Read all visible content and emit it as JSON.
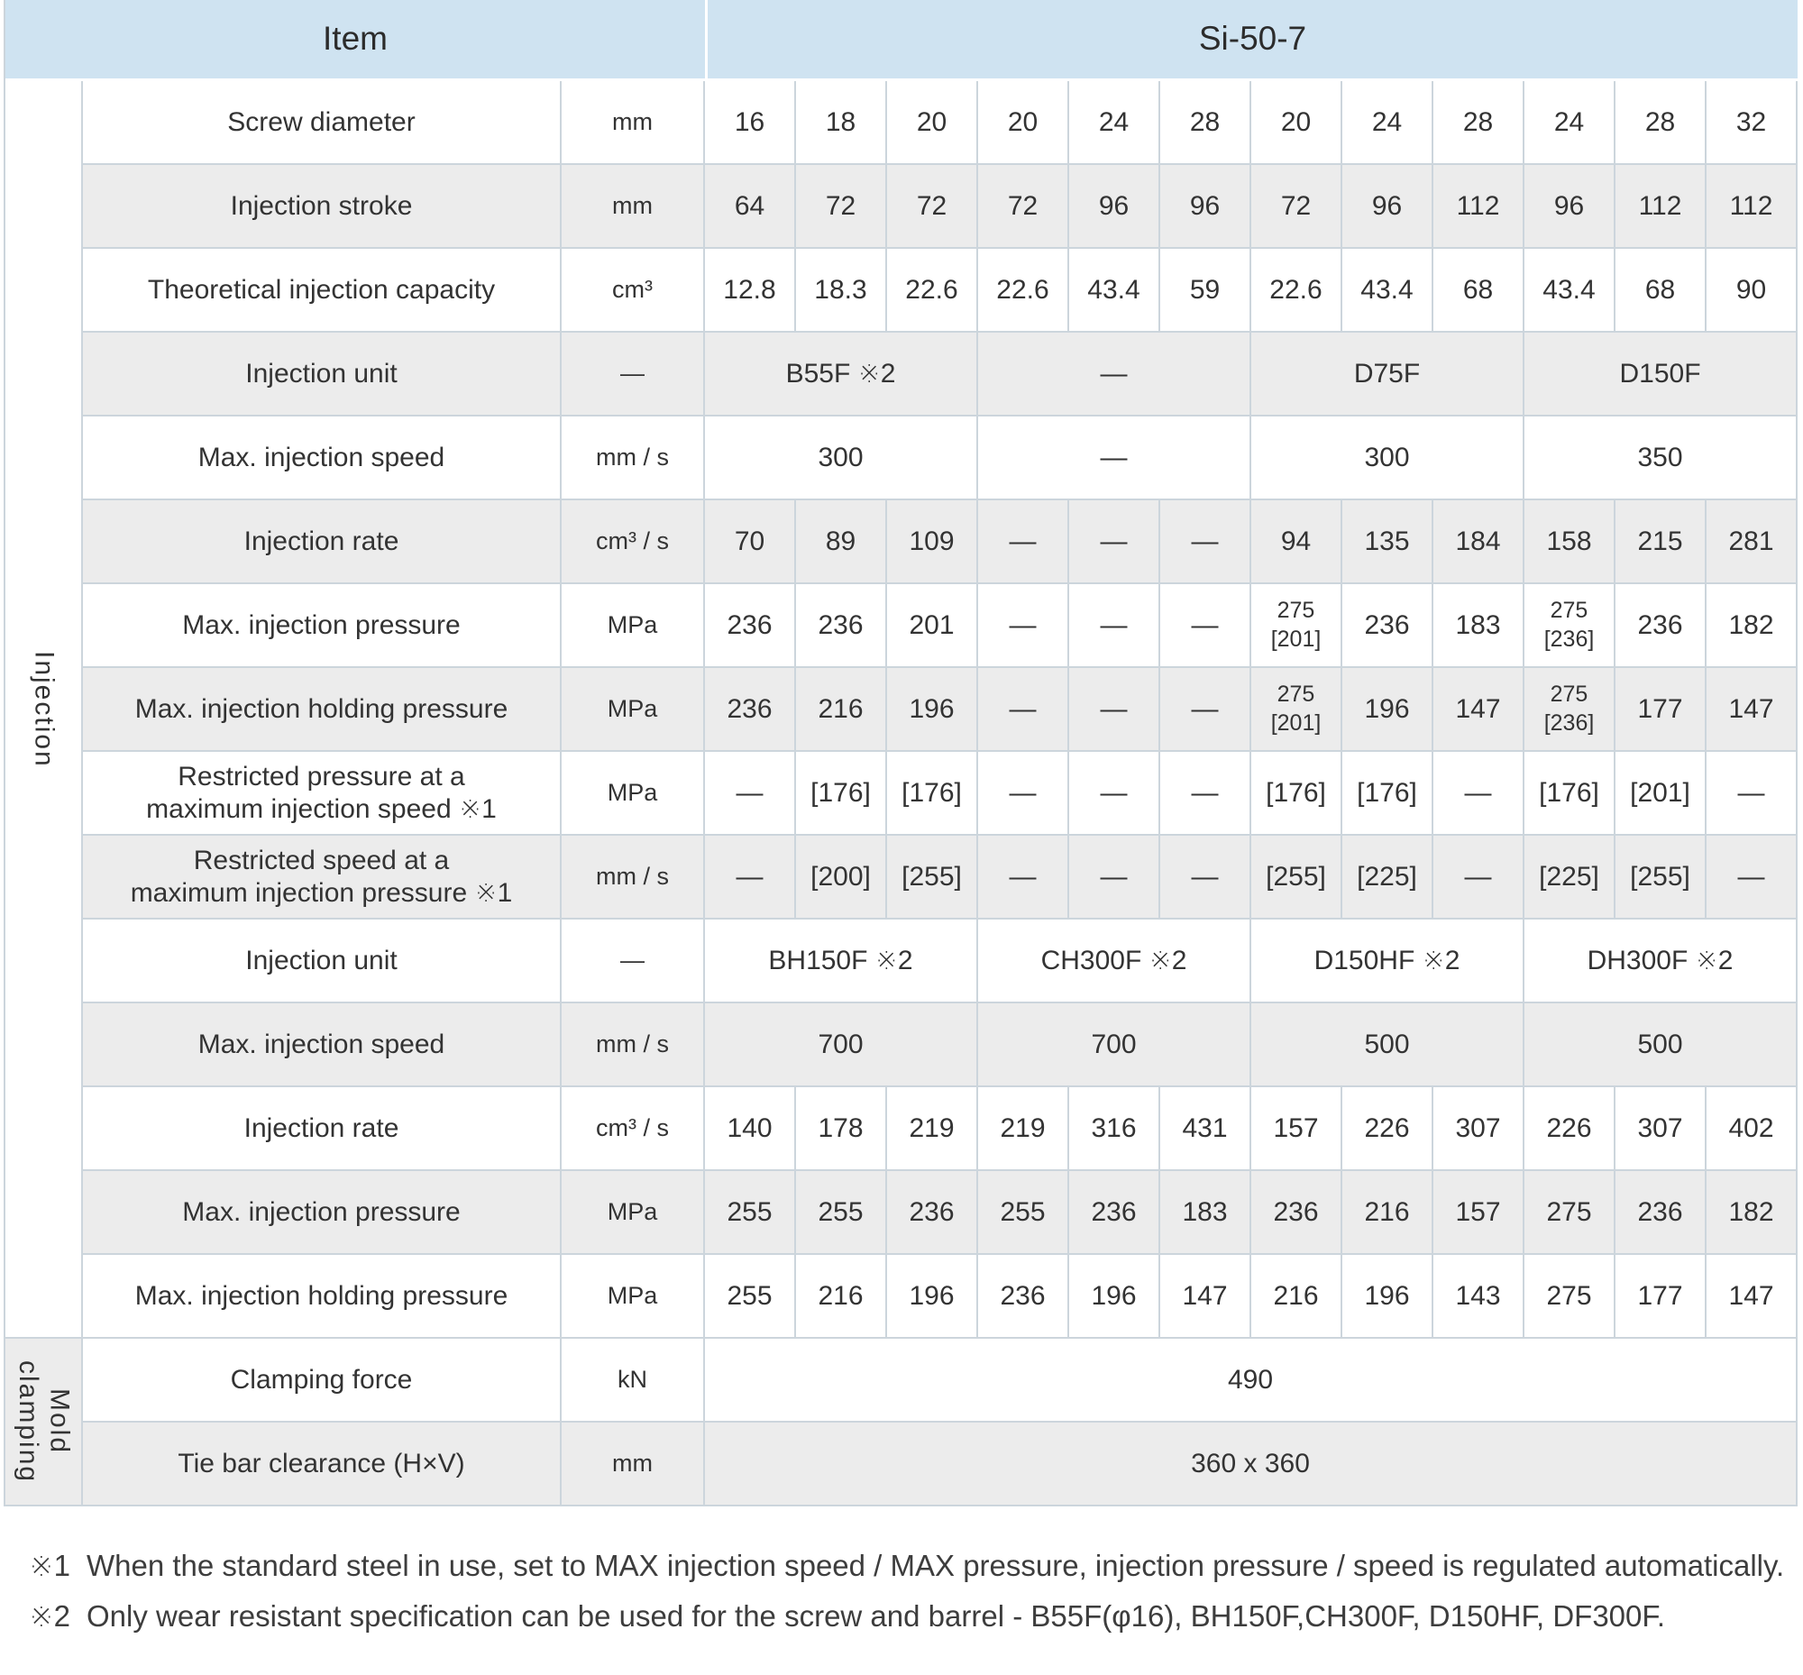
{
  "table": {
    "header": {
      "item": "Item",
      "model": "Si-50-7"
    },
    "row_groups": [
      {
        "label": "Injection",
        "rows": [
          {
            "label": "Screw diameter",
            "unit": "mm",
            "cells": [
              {
                "text": "16",
                "span": 1
              },
              {
                "text": "18",
                "span": 1
              },
              {
                "text": "20",
                "span": 1
              },
              {
                "text": "20",
                "span": 1
              },
              {
                "text": "24",
                "span": 1
              },
              {
                "text": "28",
                "span": 1
              },
              {
                "text": "20",
                "span": 1
              },
              {
                "text": "24",
                "span": 1
              },
              {
                "text": "28",
                "span": 1
              },
              {
                "text": "24",
                "span": 1
              },
              {
                "text": "28",
                "span": 1
              },
              {
                "text": "32",
                "span": 1
              }
            ]
          },
          {
            "label": "Injection stroke",
            "unit": "mm",
            "cells": [
              {
                "text": "64",
                "span": 1
              },
              {
                "text": "72",
                "span": 1
              },
              {
                "text": "72",
                "span": 1
              },
              {
                "text": "72",
                "span": 1
              },
              {
                "text": "96",
                "span": 1
              },
              {
                "text": "96",
                "span": 1
              },
              {
                "text": "72",
                "span": 1
              },
              {
                "text": "96",
                "span": 1
              },
              {
                "text": "112",
                "span": 1
              },
              {
                "text": "96",
                "span": 1
              },
              {
                "text": "112",
                "span": 1
              },
              {
                "text": "112",
                "span": 1
              }
            ]
          },
          {
            "label": "Theoretical injection capacity",
            "unit": "cm³",
            "cells": [
              {
                "text": "12.8",
                "span": 1
              },
              {
                "text": "18.3",
                "span": 1
              },
              {
                "text": "22.6",
                "span": 1
              },
              {
                "text": "22.6",
                "span": 1
              },
              {
                "text": "43.4",
                "span": 1
              },
              {
                "text": "59",
                "span": 1
              },
              {
                "text": "22.6",
                "span": 1
              },
              {
                "text": "43.4",
                "span": 1
              },
              {
                "text": "68",
                "span": 1
              },
              {
                "text": "43.4",
                "span": 1
              },
              {
                "text": "68",
                "span": 1
              },
              {
                "text": "90",
                "span": 1
              }
            ]
          },
          {
            "label": "Injection unit",
            "unit": "—",
            "cells": [
              {
                "text": "B55F ※2",
                "span": 3
              },
              {
                "text": "—",
                "span": 3
              },
              {
                "text": "D75F",
                "span": 3
              },
              {
                "text": "D150F",
                "span": 3
              }
            ]
          },
          {
            "label": "Max. injection speed",
            "unit": "mm / s",
            "cells": [
              {
                "text": "300",
                "span": 3
              },
              {
                "text": "—",
                "span": 3
              },
              {
                "text": "300",
                "span": 3
              },
              {
                "text": "350",
                "span": 3
              }
            ]
          },
          {
            "label": "Injection rate",
            "unit": "cm³ / s",
            "cells": [
              {
                "text": "70",
                "span": 1
              },
              {
                "text": "89",
                "span": 1
              },
              {
                "text": "109",
                "span": 1
              },
              {
                "text": "—",
                "span": 1
              },
              {
                "text": "—",
                "span": 1
              },
              {
                "text": "—",
                "span": 1
              },
              {
                "text": "94",
                "span": 1
              },
              {
                "text": "135",
                "span": 1
              },
              {
                "text": "184",
                "span": 1
              },
              {
                "text": "158",
                "span": 1
              },
              {
                "text": "215",
                "span": 1
              },
              {
                "text": "281",
                "span": 1
              }
            ]
          },
          {
            "label": "Max. injection pressure",
            "unit": "MPa",
            "cells": [
              {
                "text": "236",
                "span": 1
              },
              {
                "text": "236",
                "span": 1
              },
              {
                "text": "201",
                "span": 1
              },
              {
                "text": "—",
                "span": 1
              },
              {
                "text": "—",
                "span": 1
              },
              {
                "text": "—",
                "span": 1
              },
              {
                "text": "275\n[201]",
                "span": 1
              },
              {
                "text": "236",
                "span": 1
              },
              {
                "text": "183",
                "span": 1
              },
              {
                "text": "275\n[236]",
                "span": 1
              },
              {
                "text": "236",
                "span": 1
              },
              {
                "text": "182",
                "span": 1
              }
            ]
          },
          {
            "label": "Max. injection holding pressure",
            "unit": "MPa",
            "cells": [
              {
                "text": "236",
                "span": 1
              },
              {
                "text": "216",
                "span": 1
              },
              {
                "text": "196",
                "span": 1
              },
              {
                "text": "—",
                "span": 1
              },
              {
                "text": "—",
                "span": 1
              },
              {
                "text": "—",
                "span": 1
              },
              {
                "text": "275\n[201]",
                "span": 1
              },
              {
                "text": "196",
                "span": 1
              },
              {
                "text": "147",
                "span": 1
              },
              {
                "text": "275\n[236]",
                "span": 1
              },
              {
                "text": "177",
                "span": 1
              },
              {
                "text": "147",
                "span": 1
              }
            ]
          },
          {
            "label": "Restricted pressure at a\nmaximum injection speed ※1",
            "unit": "MPa",
            "cells": [
              {
                "text": "—",
                "span": 1
              },
              {
                "text": "[176]",
                "span": 1
              },
              {
                "text": "[176]",
                "span": 1
              },
              {
                "text": "—",
                "span": 1
              },
              {
                "text": "—",
                "span": 1
              },
              {
                "text": "—",
                "span": 1
              },
              {
                "text": "[176]",
                "span": 1
              },
              {
                "text": "[176]",
                "span": 1
              },
              {
                "text": "—",
                "span": 1
              },
              {
                "text": "[176]",
                "span": 1
              },
              {
                "text": "[201]",
                "span": 1
              },
              {
                "text": "—",
                "span": 1
              }
            ]
          },
          {
            "label": "Restricted speed at a\nmaximum injection pressure ※1",
            "unit": "mm / s",
            "cells": [
              {
                "text": "—",
                "span": 1
              },
              {
                "text": "[200]",
                "span": 1
              },
              {
                "text": "[255]",
                "span": 1
              },
              {
                "text": "—",
                "span": 1
              },
              {
                "text": "—",
                "span": 1
              },
              {
                "text": "—",
                "span": 1
              },
              {
                "text": "[255]",
                "span": 1
              },
              {
                "text": "[225]",
                "span": 1
              },
              {
                "text": "—",
                "span": 1
              },
              {
                "text": "[225]",
                "span": 1
              },
              {
                "text": "[255]",
                "span": 1
              },
              {
                "text": "—",
                "span": 1
              }
            ]
          },
          {
            "label": "Injection unit",
            "unit": "—",
            "cells": [
              {
                "text": "BH150F ※2",
                "span": 3
              },
              {
                "text": "CH300F ※2",
                "span": 3
              },
              {
                "text": "D150HF ※2",
                "span": 3
              },
              {
                "text": "DH300F ※2",
                "span": 3
              }
            ]
          },
          {
            "label": "Max. injection speed",
            "unit": "mm / s",
            "cells": [
              {
                "text": "700",
                "span": 3
              },
              {
                "text": "700",
                "span": 3
              },
              {
                "text": "500",
                "span": 3
              },
              {
                "text": "500",
                "span": 3
              }
            ]
          },
          {
            "label": "Injection rate",
            "unit": "cm³ / s",
            "cells": [
              {
                "text": "140",
                "span": 1
              },
              {
                "text": "178",
                "span": 1
              },
              {
                "text": "219",
                "span": 1
              },
              {
                "text": "219",
                "span": 1
              },
              {
                "text": "316",
                "span": 1
              },
              {
                "text": "431",
                "span": 1
              },
              {
                "text": "157",
                "span": 1
              },
              {
                "text": "226",
                "span": 1
              },
              {
                "text": "307",
                "span": 1
              },
              {
                "text": "226",
                "span": 1
              },
              {
                "text": "307",
                "span": 1
              },
              {
                "text": "402",
                "span": 1
              }
            ]
          },
          {
            "label": "Max. injection pressure",
            "unit": "MPa",
            "cells": [
              {
                "text": "255",
                "span": 1
              },
              {
                "text": "255",
                "span": 1
              },
              {
                "text": "236",
                "span": 1
              },
              {
                "text": "255",
                "span": 1
              },
              {
                "text": "236",
                "span": 1
              },
              {
                "text": "183",
                "span": 1
              },
              {
                "text": "236",
                "span": 1
              },
              {
                "text": "216",
                "span": 1
              },
              {
                "text": "157",
                "span": 1
              },
              {
                "text": "275",
                "span": 1
              },
              {
                "text": "236",
                "span": 1
              },
              {
                "text": "182",
                "span": 1
              }
            ]
          },
          {
            "label": "Max. injection holding pressure",
            "unit": "MPa",
            "cells": [
              {
                "text": "255",
                "span": 1
              },
              {
                "text": "216",
                "span": 1
              },
              {
                "text": "196",
                "span": 1
              },
              {
                "text": "236",
                "span": 1
              },
              {
                "text": "196",
                "span": 1
              },
              {
                "text": "147",
                "span": 1
              },
              {
                "text": "216",
                "span": 1
              },
              {
                "text": "196",
                "span": 1
              },
              {
                "text": "143",
                "span": 1
              },
              {
                "text": "275",
                "span": 1
              },
              {
                "text": "177",
                "span": 1
              },
              {
                "text": "147",
                "span": 1
              }
            ]
          }
        ]
      },
      {
        "label": "Mold\nclamping",
        "rows": [
          {
            "label": "Clamping force",
            "unit": "kN",
            "cells": [
              {
                "text": "490",
                "span": 12
              }
            ]
          },
          {
            "label": "Tie bar clearance (H×V)",
            "unit": "mm",
            "cells": [
              {
                "text": "360 x 360",
                "span": 12
              }
            ]
          }
        ]
      }
    ]
  },
  "footnotes": [
    {
      "marker": "※1",
      "text": "When the standard steel in use, set to MAX injection speed / MAX pressure, injection pressure / speed is regulated automatically."
    },
    {
      "marker": "※2",
      "text": "Only wear resistant specification can be used for the screw and barrel - B55F(φ16), BH150F,CH300F, D150HF, DF300F."
    }
  ],
  "colors": {
    "header_blue": "#cfe3f1",
    "stripe_gray": "#ececec",
    "border": "#ccd5dc"
  }
}
